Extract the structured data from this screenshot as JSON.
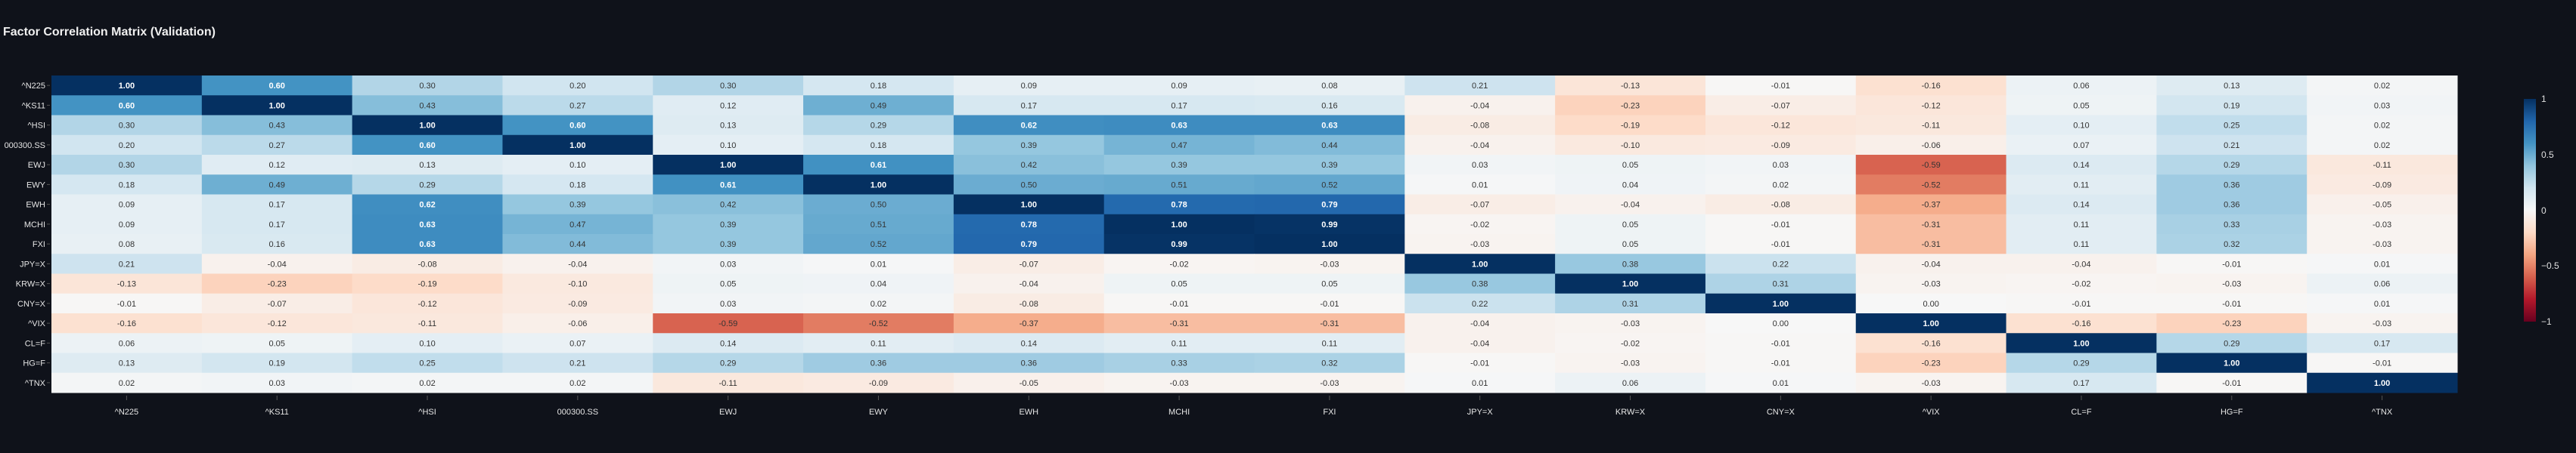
{
  "chart_data": {
    "type": "heatmap",
    "title": "Factor Correlation Matrix (Validation)",
    "labels": [
      "^N225",
      "^KS11",
      "^HSI",
      "000300.SS",
      "EWJ",
      "EWY",
      "EWH",
      "MCHI",
      "FXI",
      "JPY=X",
      "KRW=X",
      "CNY=X",
      "^VIX",
      "CL=F",
      "HG=F",
      "^TNX"
    ],
    "values": [
      [
        1.0,
        0.6,
        0.3,
        0.2,
        0.3,
        0.18,
        0.09,
        0.09,
        0.08,
        0.21,
        -0.13,
        -0.01,
        -0.16,
        0.06,
        0.13,
        0.02
      ],
      [
        0.6,
        1.0,
        0.43,
        0.27,
        0.12,
        0.49,
        0.17,
        0.17,
        0.16,
        -0.04,
        -0.23,
        -0.07,
        -0.12,
        0.05,
        0.19,
        0.03
      ],
      [
        0.3,
        0.43,
        1.0,
        0.6,
        0.13,
        0.29,
        0.62,
        0.63,
        0.63,
        -0.08,
        -0.19,
        -0.12,
        -0.11,
        0.1,
        0.25,
        0.02
      ],
      [
        0.2,
        0.27,
        0.6,
        1.0,
        0.1,
        0.18,
        0.39,
        0.47,
        0.44,
        -0.04,
        -0.1,
        -0.09,
        -0.06,
        0.07,
        0.21,
        0.02
      ],
      [
        0.3,
        0.12,
        0.13,
        0.1,
        1.0,
        0.61,
        0.42,
        0.39,
        0.39,
        0.03,
        0.05,
        0.03,
        -0.59,
        0.14,
        0.29,
        -0.11
      ],
      [
        0.18,
        0.49,
        0.29,
        0.18,
        0.61,
        1.0,
        0.5,
        0.51,
        0.52,
        0.01,
        0.04,
        0.02,
        -0.52,
        0.11,
        0.36,
        -0.09
      ],
      [
        0.09,
        0.17,
        0.62,
        0.39,
        0.42,
        0.5,
        1.0,
        0.78,
        0.79,
        -0.07,
        -0.04,
        -0.08,
        -0.37,
        0.14,
        0.36,
        -0.05
      ],
      [
        0.09,
        0.17,
        0.63,
        0.47,
        0.39,
        0.51,
        0.78,
        1.0,
        0.99,
        -0.02,
        0.05,
        -0.01,
        -0.31,
        0.11,
        0.33,
        -0.03
      ],
      [
        0.08,
        0.16,
        0.63,
        0.44,
        0.39,
        0.52,
        0.79,
        0.99,
        1.0,
        -0.03,
        0.05,
        -0.01,
        -0.31,
        0.11,
        0.32,
        -0.03
      ],
      [
        0.21,
        -0.04,
        -0.08,
        -0.04,
        0.03,
        0.01,
        -0.07,
        -0.02,
        -0.03,
        1.0,
        0.38,
        0.22,
        -0.04,
        -0.04,
        -0.01,
        0.01
      ],
      [
        -0.13,
        -0.23,
        -0.19,
        -0.1,
        0.05,
        0.04,
        -0.04,
        0.05,
        0.05,
        0.38,
        1.0,
        0.31,
        -0.03,
        -0.02,
        -0.03,
        0.06
      ],
      [
        -0.01,
        -0.07,
        -0.12,
        -0.09,
        0.03,
        0.02,
        -0.08,
        -0.01,
        -0.01,
        0.22,
        0.31,
        1.0,
        0.0,
        -0.01,
        -0.01,
        0.01
      ],
      [
        -0.16,
        -0.12,
        -0.11,
        -0.06,
        -0.59,
        -0.52,
        -0.37,
        -0.31,
        -0.31,
        -0.04,
        -0.03,
        0.0,
        1.0,
        -0.16,
        -0.23,
        -0.03
      ],
      [
        0.06,
        0.05,
        0.1,
        0.07,
        0.14,
        0.11,
        0.14,
        0.11,
        0.11,
        -0.04,
        -0.02,
        -0.01,
        -0.16,
        1.0,
        0.29,
        0.17
      ],
      [
        0.13,
        0.19,
        0.25,
        0.21,
        0.29,
        0.36,
        0.36,
        0.33,
        0.32,
        -0.01,
        -0.03,
        -0.01,
        -0.23,
        0.29,
        1.0,
        -0.01
      ],
      [
        0.02,
        0.03,
        0.02,
        0.02,
        -0.11,
        -0.09,
        -0.05,
        -0.03,
        -0.03,
        0.01,
        0.06,
        0.01,
        -0.03,
        0.17,
        -0.01,
        1.0
      ]
    ],
    "vmin": -1,
    "vmax": 1,
    "colormap": "RdBu_r",
    "colorbar_ticks": [
      "1",
      "0.5",
      "0",
      "−0.5",
      "−1"
    ],
    "colors": {
      "background": "#0f121a",
      "low": "#67001f",
      "mid": "#f7f7f7",
      "high": "#053061"
    }
  }
}
